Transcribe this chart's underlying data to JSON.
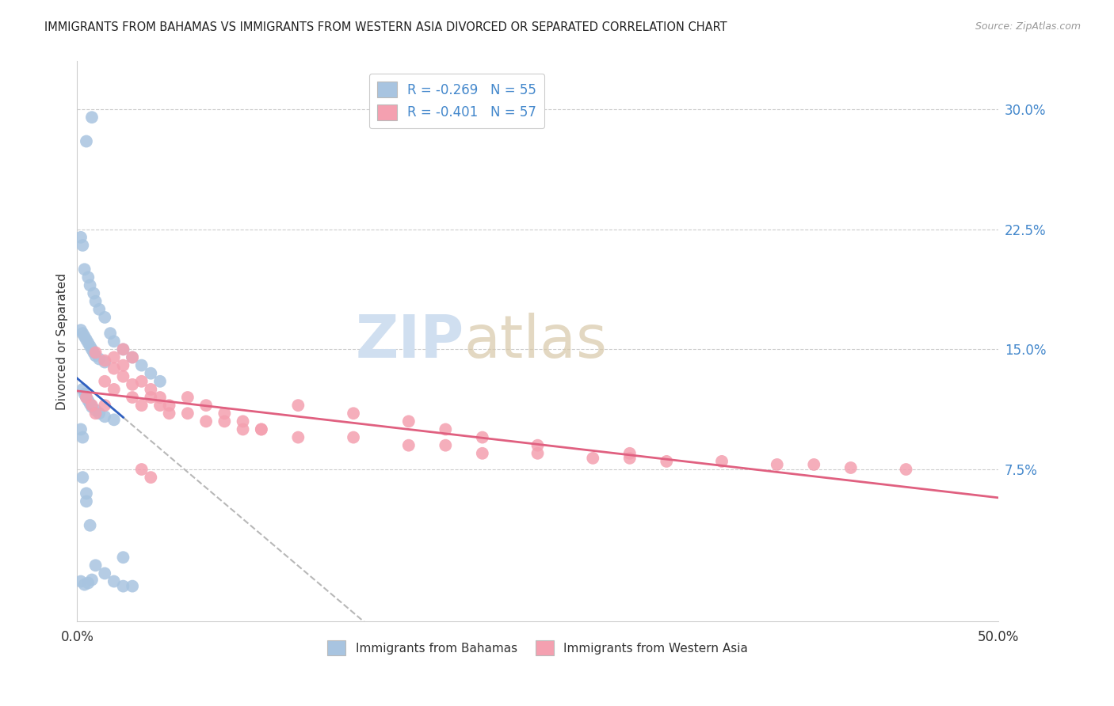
{
  "title": "IMMIGRANTS FROM BAHAMAS VS IMMIGRANTS FROM WESTERN ASIA DIVORCED OR SEPARATED CORRELATION CHART",
  "source": "Source: ZipAtlas.com",
  "ylabel": "Divorced or Separated",
  "ytick_values": [
    0.075,
    0.15,
    0.225,
    0.3
  ],
  "xlim": [
    0.0,
    0.5
  ],
  "ylim": [
    -0.02,
    0.33
  ],
  "legend_r_blue": "R = -0.269",
  "legend_n_blue": "N = 55",
  "legend_r_pink": "R = -0.401",
  "legend_n_pink": "N = 57",
  "blue_color": "#a8c4e0",
  "pink_color": "#f4a0b0",
  "blue_line_color": "#3060c0",
  "pink_line_color": "#e06080",
  "dashed_line_color": "#b8b8b8",
  "watermark_zip": "ZIP",
  "watermark_atlas": "atlas",
  "watermark_color": "#d0dff0",
  "blue_scatter_x": [
    0.005,
    0.008,
    0.002,
    0.003,
    0.004,
    0.006,
    0.007,
    0.009,
    0.01,
    0.012,
    0.015,
    0.018,
    0.02,
    0.025,
    0.03,
    0.035,
    0.04,
    0.045,
    0.002,
    0.003,
    0.004,
    0.005,
    0.006,
    0.007,
    0.008,
    0.009,
    0.01,
    0.012,
    0.015,
    0.003,
    0.004,
    0.005,
    0.006,
    0.007,
    0.008,
    0.01,
    0.012,
    0.015,
    0.02,
    0.002,
    0.003,
    0.005,
    0.007,
    0.01,
    0.015,
    0.02,
    0.025,
    0.03,
    0.002,
    0.004,
    0.006,
    0.008,
    0.003,
    0.005,
    0.025
  ],
  "blue_scatter_y": [
    0.28,
    0.295,
    0.22,
    0.215,
    0.2,
    0.195,
    0.19,
    0.185,
    0.18,
    0.175,
    0.17,
    0.16,
    0.155,
    0.15,
    0.145,
    0.14,
    0.135,
    0.13,
    0.162,
    0.16,
    0.158,
    0.156,
    0.154,
    0.152,
    0.15,
    0.148,
    0.146,
    0.144,
    0.142,
    0.125,
    0.122,
    0.12,
    0.118,
    0.116,
    0.114,
    0.112,
    0.11,
    0.108,
    0.106,
    0.1,
    0.095,
    0.055,
    0.04,
    0.015,
    0.01,
    0.005,
    0.002,
    0.002,
    0.005,
    0.003,
    0.004,
    0.006,
    0.07,
    0.06,
    0.02
  ],
  "pink_scatter_x": [
    0.005,
    0.008,
    0.01,
    0.015,
    0.02,
    0.025,
    0.03,
    0.035,
    0.04,
    0.045,
    0.05,
    0.06,
    0.07,
    0.08,
    0.09,
    0.1,
    0.12,
    0.15,
    0.18,
    0.2,
    0.22,
    0.25,
    0.28,
    0.3,
    0.32,
    0.35,
    0.38,
    0.4,
    0.42,
    0.45,
    0.015,
    0.02,
    0.025,
    0.03,
    0.035,
    0.04,
    0.045,
    0.05,
    0.06,
    0.07,
    0.08,
    0.09,
    0.1,
    0.12,
    0.15,
    0.18,
    0.2,
    0.22,
    0.25,
    0.3,
    0.01,
    0.015,
    0.02,
    0.025,
    0.03,
    0.035,
    0.04
  ],
  "pink_scatter_y": [
    0.12,
    0.115,
    0.11,
    0.115,
    0.145,
    0.14,
    0.12,
    0.115,
    0.12,
    0.115,
    0.11,
    0.11,
    0.105,
    0.105,
    0.1,
    0.1,
    0.095,
    0.095,
    0.09,
    0.09,
    0.085,
    0.085,
    0.082,
    0.082,
    0.08,
    0.08,
    0.078,
    0.078,
    0.076,
    0.075,
    0.13,
    0.125,
    0.15,
    0.145,
    0.13,
    0.125,
    0.12,
    0.115,
    0.12,
    0.115,
    0.11,
    0.105,
    0.1,
    0.115,
    0.11,
    0.105,
    0.1,
    0.095,
    0.09,
    0.085,
    0.148,
    0.143,
    0.138,
    0.133,
    0.128,
    0.075,
    0.07
  ]
}
